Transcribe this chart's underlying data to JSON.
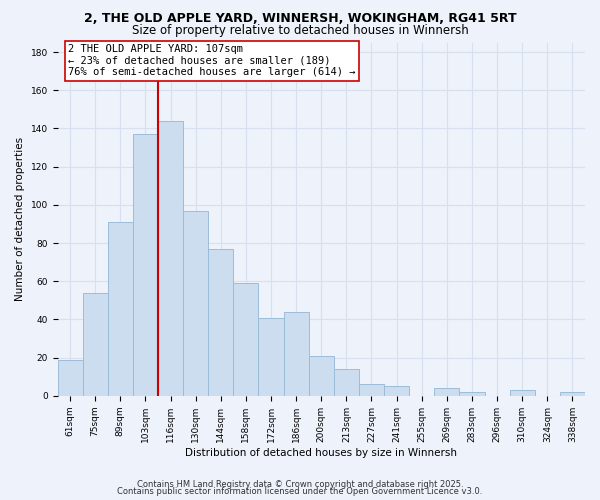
{
  "title1": "2, THE OLD APPLE YARD, WINNERSH, WOKINGHAM, RG41 5RT",
  "title2": "Size of property relative to detached houses in Winnersh",
  "xlabel": "Distribution of detached houses by size in Winnersh",
  "ylabel": "Number of detached properties",
  "bar_labels": [
    "61sqm",
    "75sqm",
    "89sqm",
    "103sqm",
    "116sqm",
    "130sqm",
    "144sqm",
    "158sqm",
    "172sqm",
    "186sqm",
    "200sqm",
    "213sqm",
    "227sqm",
    "241sqm",
    "255sqm",
    "269sqm",
    "283sqm",
    "296sqm",
    "310sqm",
    "324sqm",
    "338sqm"
  ],
  "bar_values": [
    19,
    54,
    91,
    137,
    144,
    97,
    77,
    59,
    41,
    44,
    21,
    14,
    6,
    5,
    0,
    4,
    2,
    0,
    3,
    0,
    2
  ],
  "bar_color": "#ccddf0",
  "bar_edge_color": "#9bbcd8",
  "vline_x_index": 3.5,
  "vline_color": "#cc0000",
  "annotation_line1": "2 THE OLD APPLE YARD: 107sqm",
  "annotation_line2": "← 23% of detached houses are smaller (189)",
  "annotation_line3": "76% of semi-detached houses are larger (614) →",
  "annotation_box_color": "#ffffff",
  "annotation_box_edge": "#cc0000",
  "ylim": [
    0,
    185
  ],
  "yticks": [
    0,
    20,
    40,
    60,
    80,
    100,
    120,
    140,
    160,
    180
  ],
  "footer1": "Contains HM Land Registry data © Crown copyright and database right 2025.",
  "footer2": "Contains public sector information licensed under the Open Government Licence v3.0.",
  "bg_color": "#eef2fa",
  "plot_bg_color": "#eef2fa",
  "grid_color": "#d8e0f0",
  "title_fontsize": 9,
  "subtitle_fontsize": 8.5,
  "axis_label_fontsize": 7.5,
  "tick_fontsize": 6.5,
  "annotation_fontsize": 7.5,
  "footer_fontsize": 6
}
